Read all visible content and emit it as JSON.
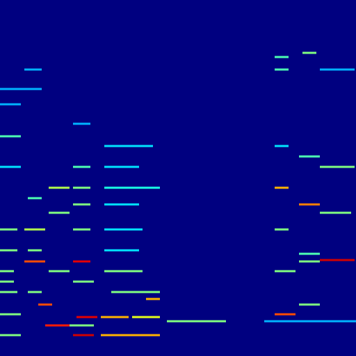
{
  "chart_data": {
    "type": "heatmap",
    "tick_labels": false,
    "grid": false,
    "xlim": [
      0,
      512
    ],
    "ylim": [
      0,
      512
    ],
    "clim": [
      0,
      1
    ],
    "segments": [
      {
        "x": [
          0,
          30
        ],
        "y": 30,
        "value": 0.5
      },
      {
        "x": [
          105,
          135
        ],
        "y": 30,
        "value": 0.92
      },
      {
        "x": [
          145,
          230
        ],
        "y": 30,
        "value": 0.7
      },
      {
        "x": [
          65,
          100
        ],
        "y": 44,
        "value": 0.85
      },
      {
        "x": [
          100,
          135
        ],
        "y": 44,
        "value": 0.5
      },
      {
        "x": [
          240,
          325
        ],
        "y": 50,
        "value": 0.5
      },
      {
        "x": [
          380,
          512
        ],
        "y": 50,
        "value": 0.3
      },
      {
        "x": [
          110,
          140
        ],
        "y": 56,
        "value": 0.9
      },
      {
        "x": [
          145,
          185
        ],
        "y": 56,
        "value": 0.7
      },
      {
        "x": [
          190,
          230
        ],
        "y": 56,
        "value": 0.6
      },
      {
        "x": [
          0,
          30
        ],
        "y": 60,
        "value": 0.5
      },
      {
        "x": [
          395,
          425
        ],
        "y": 60,
        "value": 0.8
      },
      {
        "x": [
          55,
          75
        ],
        "y": 74,
        "value": 0.8
      },
      {
        "x": [
          430,
          460
        ],
        "y": 74,
        "value": 0.5
      },
      {
        "x": [
          210,
          230
        ],
        "y": 82,
        "value": 0.7
      },
      {
        "x": [
          0,
          25
        ],
        "y": 92,
        "value": 0.5
      },
      {
        "x": [
          40,
          60
        ],
        "y": 92,
        "value": 0.5
      },
      {
        "x": [
          160,
          230
        ],
        "y": 92,
        "value": 0.5
      },
      {
        "x": [
          0,
          20
        ],
        "y": 107,
        "value": 0.5
      },
      {
        "x": [
          105,
          135
        ],
        "y": 107,
        "value": 0.5
      },
      {
        "x": [
          0,
          20
        ],
        "y": 122,
        "value": 0.5
      },
      {
        "x": [
          70,
          100
        ],
        "y": 122,
        "value": 0.5
      },
      {
        "x": [
          150,
          205
        ],
        "y": 122,
        "value": 0.5
      },
      {
        "x": [
          395,
          425
        ],
        "y": 122,
        "value": 0.5
      },
      {
        "x": [
          35,
          65
        ],
        "y": 136,
        "value": 0.8
      },
      {
        "x": [
          105,
          130
        ],
        "y": 136,
        "value": 0.9
      },
      {
        "x": [
          430,
          460
        ],
        "y": 136,
        "value": 0.5
      },
      {
        "x": [
          460,
          510
        ],
        "y": 138,
        "value": 0.92
      },
      {
        "x": [
          430,
          460
        ],
        "y": 147,
        "value": 0.45
      },
      {
        "x": [
          0,
          25
        ],
        "y": 152,
        "value": 0.5
      },
      {
        "x": [
          40,
          60
        ],
        "y": 152,
        "value": 0.5
      },
      {
        "x": [
          150,
          200
        ],
        "y": 152,
        "value": 0.35
      },
      {
        "x": [
          0,
          25
        ],
        "y": 182,
        "value": 0.5
      },
      {
        "x": [
          35,
          65
        ],
        "y": 182,
        "value": 0.55
      },
      {
        "x": [
          105,
          130
        ],
        "y": 182,
        "value": 0.5
      },
      {
        "x": [
          150,
          205
        ],
        "y": 182,
        "value": 0.35
      },
      {
        "x": [
          395,
          415
        ],
        "y": 182,
        "value": 0.5
      },
      {
        "x": [
          70,
          100
        ],
        "y": 206,
        "value": 0.5
      },
      {
        "x": [
          460,
          505
        ],
        "y": 206,
        "value": 0.5
      },
      {
        "x": [
          105,
          130
        ],
        "y": 218,
        "value": 0.5
      },
      {
        "x": [
          150,
          200
        ],
        "y": 218,
        "value": 0.35
      },
      {
        "x": [
          430,
          460
        ],
        "y": 218,
        "value": 0.75
      },
      {
        "x": [
          40,
          60
        ],
        "y": 227,
        "value": 0.45
      },
      {
        "x": [
          70,
          100
        ],
        "y": 242,
        "value": 0.55
      },
      {
        "x": [
          105,
          130
        ],
        "y": 242,
        "value": 0.5
      },
      {
        "x": [
          150,
          230
        ],
        "y": 242,
        "value": 0.4
      },
      {
        "x": [
          395,
          415
        ],
        "y": 242,
        "value": 0.7
      },
      {
        "x": [
          0,
          30
        ],
        "y": 272,
        "value": 0.35
      },
      {
        "x": [
          105,
          130
        ],
        "y": 272,
        "value": 0.45
      },
      {
        "x": [
          150,
          200
        ],
        "y": 272,
        "value": 0.35
      },
      {
        "x": [
          460,
          510
        ],
        "y": 272,
        "value": 0.5
      },
      {
        "x": [
          430,
          460
        ],
        "y": 287,
        "value": 0.45
      },
      {
        "x": [
          150,
          220
        ],
        "y": 302,
        "value": 0.35
      },
      {
        "x": [
          395,
          415
        ],
        "y": 302,
        "value": 0.35
      },
      {
        "x": [
          0,
          30
        ],
        "y": 316,
        "value": 0.45
      },
      {
        "x": [
          105,
          130
        ],
        "y": 334,
        "value": 0.3
      },
      {
        "x": [
          0,
          30
        ],
        "y": 362,
        "value": 0.3
      },
      {
        "x": [
          0,
          60
        ],
        "y": 384,
        "value": 0.3
      },
      {
        "x": [
          35,
          60
        ],
        "y": 412,
        "value": 0.3
      },
      {
        "x": [
          395,
          415
        ],
        "y": 412,
        "value": 0.45
      },
      {
        "x": [
          460,
          510
        ],
        "y": 412,
        "value": 0.3
      },
      {
        "x": [
          395,
          415
        ],
        "y": 430,
        "value": 0.45
      },
      {
        "x": [
          435,
          455
        ],
        "y": 436,
        "value": 0.5
      }
    ]
  }
}
